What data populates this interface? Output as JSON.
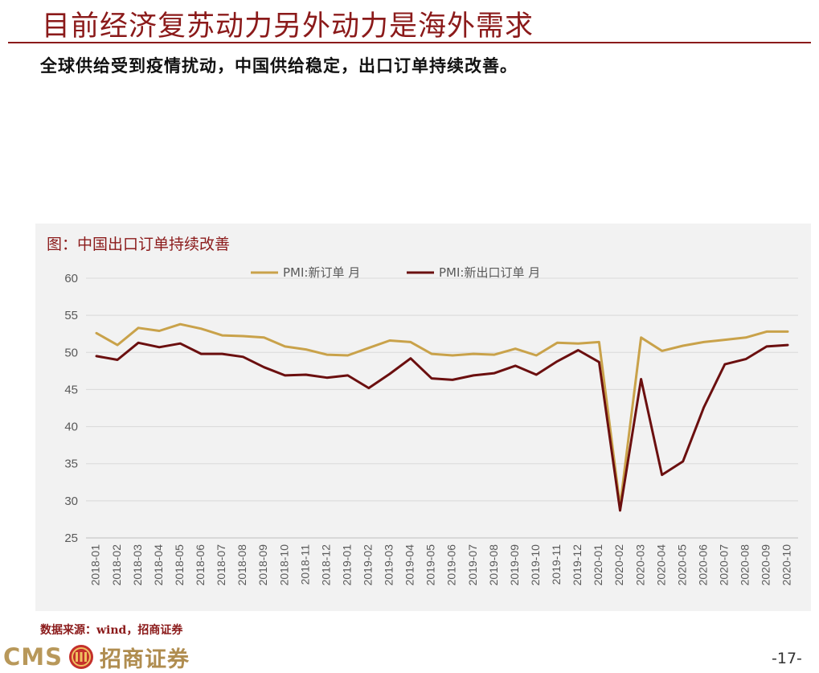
{
  "header": {
    "title": "目前经济复苏动力另外动力是海外需求",
    "subtitle": "全球供给受到疫情扰动，中国供给稳定，出口订单持续改善。"
  },
  "chart_data": {
    "type": "line",
    "title": "图：中国出口订单持续改善",
    "xlabel": "",
    "ylabel": "",
    "ylim": [
      25,
      60
    ],
    "yticks": [
      25,
      30,
      35,
      40,
      45,
      50,
      55,
      60
    ],
    "grid": true,
    "legend": "top",
    "categories": [
      "2018-01",
      "2018-02",
      "2018-03",
      "2018-04",
      "2018-05",
      "2018-06",
      "2018-07",
      "2018-08",
      "2018-09",
      "2018-10",
      "2018-11",
      "2018-12",
      "2019-01",
      "2019-02",
      "2019-03",
      "2019-04",
      "2019-05",
      "2019-06",
      "2019-07",
      "2019-08",
      "2019-09",
      "2019-10",
      "2019-11",
      "2019-12",
      "2020-01",
      "2020-02",
      "2020-03",
      "2020-04",
      "2020-05",
      "2020-06",
      "2020-07",
      "2020-08",
      "2020-09",
      "2020-10"
    ],
    "series": [
      {
        "name": "PMI:新订单 月",
        "color": "#c9a24a",
        "values": [
          52.6,
          51.0,
          53.3,
          52.9,
          53.8,
          53.2,
          52.3,
          52.2,
          52.0,
          50.8,
          50.4,
          49.7,
          49.6,
          50.6,
          51.6,
          51.4,
          49.8,
          49.6,
          49.8,
          49.7,
          50.5,
          49.6,
          51.3,
          51.2,
          51.4,
          29.3,
          52.0,
          50.2,
          50.9,
          51.4,
          51.7,
          52.0,
          52.8,
          52.8
        ]
      },
      {
        "name": "PMI:新出口订单 月",
        "color": "#6b0f0f",
        "values": [
          49.5,
          49.0,
          51.3,
          50.7,
          51.2,
          49.8,
          49.8,
          49.4,
          48.0,
          46.9,
          47.0,
          46.6,
          46.9,
          45.2,
          47.1,
          49.2,
          46.5,
          46.3,
          46.9,
          47.2,
          48.2,
          47.0,
          48.8,
          50.3,
          48.7,
          28.7,
          46.4,
          33.5,
          35.3,
          42.6,
          48.4,
          49.1,
          50.8,
          51.0
        ]
      }
    ]
  },
  "footer": {
    "source": "数据来源：wind，招商证券",
    "logo_latin": "CMS",
    "logo_cn": "招商证券",
    "page_number": "-17-"
  }
}
